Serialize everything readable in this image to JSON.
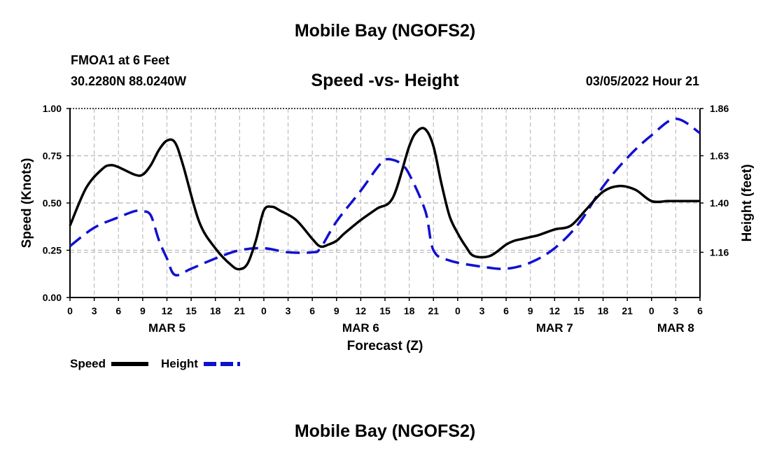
{
  "page": {
    "title_top": "Mobile Bay (NGOFS2)",
    "title_bottom": "Mobile Bay (NGOFS2)",
    "station": "FMOA1 at 6 Feet",
    "coords": "30.2280N  88.0240W",
    "subtitle": "Speed -vs- Height",
    "datetime": "03/05/2022 Hour 21"
  },
  "chart_data": {
    "type": "line",
    "title": "Speed -vs- Height",
    "xlabel": "Forecast (Z)",
    "ylabel": "Speed (Knots)",
    "y2label": "Height (feet)",
    "xlim": [
      0,
      78
    ],
    "ylim": [
      0,
      1.0
    ],
    "y2lim": [
      0.94,
      1.86
    ],
    "x_ticks": [
      0,
      3,
      6,
      9,
      12,
      15,
      18,
      21,
      24,
      27,
      30,
      33,
      36,
      39,
      42,
      45,
      48,
      51,
      54,
      57,
      60,
      63,
      66,
      69,
      72,
      75,
      78
    ],
    "x_tick_labels": [
      "0",
      "3",
      "6",
      "9",
      "12",
      "15",
      "18",
      "21",
      "0",
      "3",
      "6",
      "9",
      "12",
      "15",
      "18",
      "21",
      "0",
      "3",
      "6",
      "9",
      "12",
      "15",
      "18",
      "21",
      "0",
      "3",
      "6"
    ],
    "date_labels": [
      {
        "label": "MAR 5",
        "x": 12
      },
      {
        "label": "MAR 6",
        "x": 36
      },
      {
        "label": "MAR 7",
        "x": 60
      },
      {
        "label": "MAR 8",
        "x": 75
      }
    ],
    "y_ticks": [
      0,
      0.25,
      0.5,
      0.75,
      1.0
    ],
    "y_tick_labels": [
      "0.00",
      "0.25",
      "0.50",
      "0.75",
      "1.00"
    ],
    "y2_ticks": [
      1.16,
      1.4,
      1.63,
      1.86
    ],
    "y2_tick_labels": [
      "1.16",
      "1.40",
      "1.63",
      "1.86"
    ],
    "series": [
      {
        "name": "Speed",
        "axis": "left",
        "color": "#000000",
        "dash": false,
        "x": [
          0,
          2,
          4,
          5,
          6,
          8,
          9,
          10,
          11,
          12,
          13,
          14,
          16,
          18,
          20,
          21,
          22,
          23,
          24,
          25,
          26,
          28,
          30,
          31,
          32,
          33,
          34,
          36,
          38,
          40,
          42,
          43,
          44,
          45,
          46,
          47,
          48,
          49,
          50,
          52,
          54,
          55,
          56,
          57,
          58,
          60,
          62,
          64,
          66,
          68,
          70,
          72,
          74,
          75,
          76,
          78
        ],
        "values": [
          0.38,
          0.58,
          0.68,
          0.7,
          0.69,
          0.65,
          0.65,
          0.7,
          0.78,
          0.83,
          0.82,
          0.7,
          0.4,
          0.26,
          0.17,
          0.15,
          0.18,
          0.3,
          0.46,
          0.48,
          0.46,
          0.41,
          0.31,
          0.27,
          0.28,
          0.3,
          0.34,
          0.41,
          0.47,
          0.53,
          0.8,
          0.88,
          0.89,
          0.8,
          0.6,
          0.43,
          0.34,
          0.27,
          0.22,
          0.22,
          0.28,
          0.3,
          0.31,
          0.32,
          0.33,
          0.36,
          0.38,
          0.47,
          0.56,
          0.59,
          0.57,
          0.51,
          0.51,
          0.51,
          0.51,
          0.51
        ]
      },
      {
        "name": "Height",
        "axis": "right",
        "color": "#1010d0",
        "dash": true,
        "x": [
          0,
          3,
          6,
          8,
          9,
          10,
          11,
          12,
          13,
          15,
          18,
          21,
          24,
          27,
          30,
          31,
          33,
          36,
          38,
          39,
          40,
          41,
          42,
          44,
          45,
          47,
          51,
          54,
          57,
          60,
          63,
          66,
          69,
          72,
          75,
          78
        ],
        "values": [
          1.19,
          1.28,
          1.33,
          1.36,
          1.36,
          1.34,
          1.22,
          1.13,
          1.05,
          1.08,
          1.13,
          1.17,
          1.18,
          1.16,
          1.16,
          1.18,
          1.31,
          1.46,
          1.57,
          1.61,
          1.61,
          1.59,
          1.54,
          1.36,
          1.17,
          1.12,
          1.09,
          1.08,
          1.11,
          1.18,
          1.3,
          1.48,
          1.62,
          1.73,
          1.81,
          1.74
        ]
      }
    ],
    "legend": [
      {
        "label": "Speed",
        "color": "#000000",
        "dash": false
      },
      {
        "label": "Height",
        "color": "#1010d0",
        "dash": true
      }
    ]
  }
}
